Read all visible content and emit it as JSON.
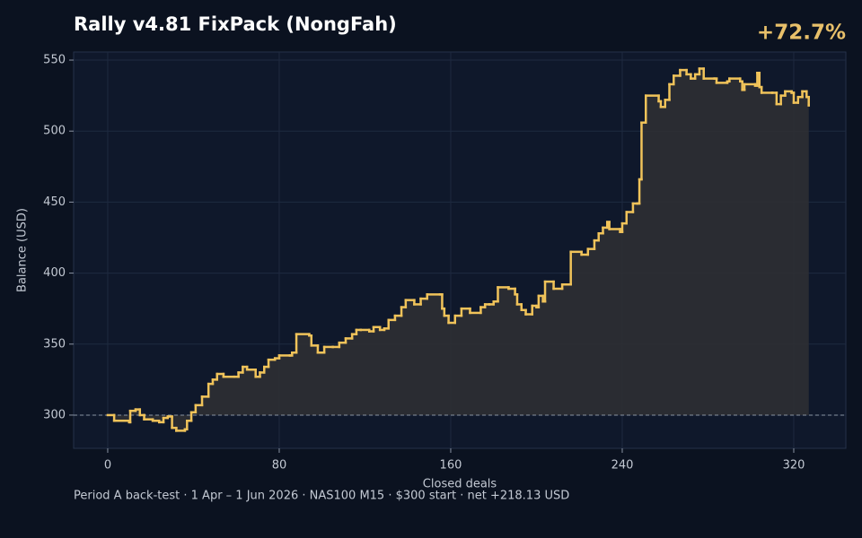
{
  "chart_data": {
    "type": "step",
    "title": "Rally v4.81 FixPack (NongFah)",
    "annotation": "+72.7%",
    "footer": "Period A back-test  ·  1 Apr – 1 Jun 2026  ·  NAS100 M15  ·  $300 start  ·  net +218.13 USD",
    "xlabel": "Closed deals",
    "ylabel": "Balance (USD)",
    "color": "#f0c35a",
    "fill": "#2e2f33",
    "grid": true,
    "baseline": 300,
    "xlim": [
      -15.9,
      344.3
    ],
    "ylim": [
      276.6,
      555.7
    ],
    "xticks": [
      0,
      80,
      160,
      240,
      320
    ],
    "yticks": [
      300,
      350,
      400,
      450,
      500,
      550
    ],
    "x": [
      0,
      3,
      10,
      10.5,
      13,
      15,
      17,
      21,
      24,
      26,
      28,
      30,
      32,
      36,
      37,
      39,
      41,
      44,
      47,
      49,
      51,
      54,
      59,
      61,
      63,
      65,
      69,
      71,
      73,
      75,
      78,
      80,
      85,
      86,
      88,
      94,
      95,
      98,
      101,
      105,
      108,
      111,
      114,
      116,
      118,
      122,
      124,
      127,
      129,
      131,
      134,
      137,
      139,
      143,
      146,
      149,
      155,
      156,
      157,
      159,
      162,
      165,
      169,
      174,
      176,
      178,
      180,
      182,
      187,
      190,
      191,
      193,
      195,
      198,
      200,
      201,
      203,
      204,
      208,
      212,
      215,
      216,
      221,
      224,
      227,
      229,
      231,
      233,
      234,
      239,
      240,
      242,
      245,
      247,
      248,
      249,
      251,
      257,
      258,
      260,
      262,
      264,
      267,
      270,
      272,
      274,
      276,
      278,
      283,
      284,
      289,
      290,
      295,
      296,
      297,
      302,
      303,
      304,
      305,
      310,
      312,
      314,
      316,
      319,
      320,
      322,
      324,
      326,
      327
    ],
    "values": [
      300,
      296,
      295,
      303,
      304,
      300,
      297,
      296,
      295,
      298,
      299,
      291,
      289,
      290,
      296,
      302,
      307,
      313,
      322,
      325,
      329,
      327,
      327,
      330,
      334,
      332,
      327,
      330,
      334,
      339,
      340,
      342,
      342,
      344,
      357,
      356,
      349,
      344,
      348,
      348,
      351,
      354,
      357,
      360,
      360,
      359,
      362,
      360,
      361,
      367,
      370,
      376,
      381,
      378,
      382,
      385,
      385,
      375,
      370,
      365,
      370,
      375,
      372,
      376,
      378,
      378,
      380,
      390,
      389,
      385,
      378,
      374,
      371,
      377,
      376,
      384,
      380,
      394,
      389,
      392,
      392,
      415,
      413,
      417,
      423,
      428,
      432,
      436,
      431,
      429,
      435,
      443,
      449,
      449,
      466,
      506,
      525,
      521,
      517,
      522,
      533,
      539,
      543,
      540,
      537,
      540,
      544,
      537,
      537,
      534,
      535,
      537,
      535,
      529,
      533,
      532,
      541,
      531,
      527,
      527,
      519,
      525,
      528,
      527,
      520,
      524,
      528,
      524,
      518.13
    ]
  }
}
